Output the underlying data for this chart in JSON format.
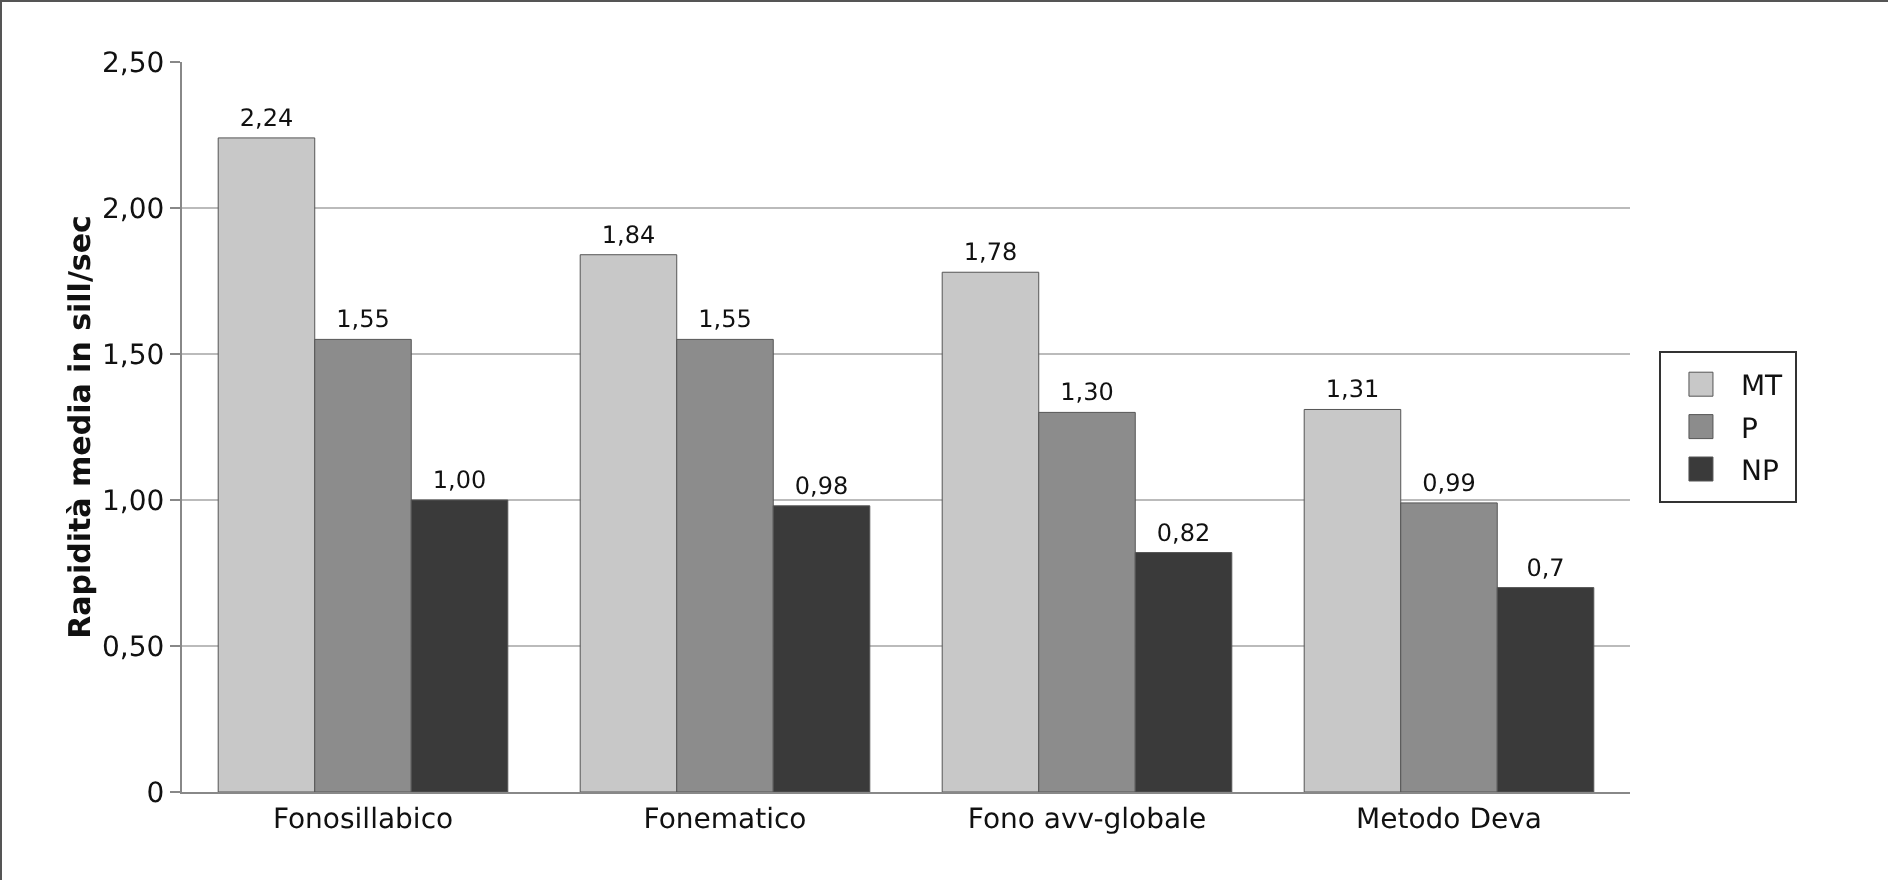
{
  "chart_data": {
    "type": "bar",
    "ylabel": "Rapidità media in sill/sec",
    "categories": [
      "Fonosillabico",
      "Fonematico",
      "Fono avv-globale",
      "Metodo Deva"
    ],
    "series": [
      {
        "name": "MT",
        "color": "#c8c8c8",
        "values": [
          2.24,
          1.84,
          1.78,
          1.31
        ],
        "value_labels": [
          "2,24",
          "1,84",
          "1,78",
          "1,31"
        ]
      },
      {
        "name": "P",
        "color": "#8c8c8c",
        "values": [
          1.55,
          1.55,
          1.3,
          0.99
        ],
        "value_labels": [
          "1,55",
          "1,55",
          "1,30",
          "0,99"
        ]
      },
      {
        "name": "NP",
        "color": "#3a3a3a",
        "values": [
          1.0,
          0.98,
          0.82,
          0.7
        ],
        "value_labels": [
          "1,00",
          "0,98",
          "0,82",
          "0,7"
        ]
      }
    ],
    "ylim": [
      0,
      2.5
    ],
    "yticks": [
      0,
      {
        "value": 0.5,
        "label": "0,50"
      },
      {
        "value": 1,
        "label": "1,00"
      },
      {
        "value": 1.5,
        "label": "1,50"
      },
      {
        "value": 2,
        "label": "2,00"
      },
      {
        "value": 2.5,
        "label": "2,50"
      }
    ],
    "grid": "y",
    "legend": "right"
  }
}
